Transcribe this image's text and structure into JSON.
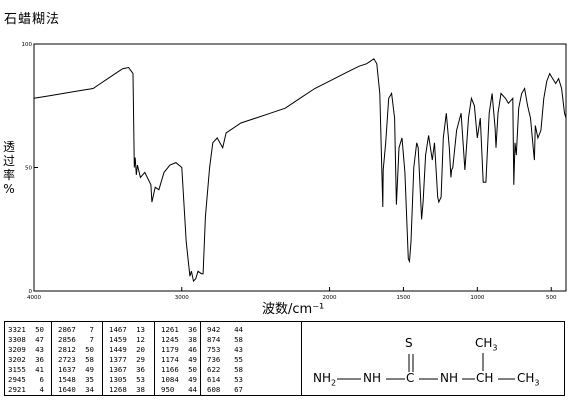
{
  "method_label": "石蜡糊法",
  "chart_data": {
    "type": "line",
    "title": "",
    "xlabel": "波数/cm⁻¹",
    "ylabel": [
      "透",
      "过",
      "率",
      "%"
    ],
    "xlim": [
      4000,
      400
    ],
    "ylim": [
      0,
      100
    ],
    "x_ticks": [
      {
        "value": 4000,
        "label": "4000"
      },
      {
        "value": 3000,
        "label": "3000"
      },
      {
        "value": 2000,
        "label": "2000"
      },
      {
        "value": 1500,
        "label": "1500"
      },
      {
        "value": 1000,
        "label": "1000"
      },
      {
        "value": 500,
        "label": "500"
      }
    ],
    "y_ticks": [
      {
        "value": 100,
        "label": "100"
      },
      {
        "value": 50,
        "label": "50"
      },
      {
        "value": 0,
        "label": "0"
      }
    ],
    "grid": false,
    "series": [
      {
        "color": "#000000",
        "points": [
          [
            4000,
            78
          ],
          [
            3900,
            79
          ],
          [
            3800,
            80
          ],
          [
            3700,
            81
          ],
          [
            3600,
            82
          ],
          [
            3550,
            84
          ],
          [
            3500,
            86
          ],
          [
            3450,
            88
          ],
          [
            3400,
            90
          ],
          [
            3360,
            90.5
          ],
          [
            3330,
            88
          ],
          [
            3321,
            50
          ],
          [
            3315,
            54
          ],
          [
            3308,
            47
          ],
          [
            3300,
            51
          ],
          [
            3280,
            46
          ],
          [
            3250,
            48
          ],
          [
            3209,
            43
          ],
          [
            3202,
            36
          ],
          [
            3180,
            42
          ],
          [
            3155,
            41
          ],
          [
            3120,
            48
          ],
          [
            3080,
            51
          ],
          [
            3040,
            52
          ],
          [
            3000,
            50
          ],
          [
            2970,
            20
          ],
          [
            2945,
            6
          ],
          [
            2935,
            8
          ],
          [
            2921,
            4
          ],
          [
            2905,
            5
          ],
          [
            2890,
            8
          ],
          [
            2867,
            7
          ],
          [
            2856,
            7
          ],
          [
            2840,
            30
          ],
          [
            2812,
            50
          ],
          [
            2790,
            60
          ],
          [
            2760,
            62
          ],
          [
            2723,
            58
          ],
          [
            2700,
            64
          ],
          [
            2600,
            68
          ],
          [
            2500,
            70
          ],
          [
            2400,
            72
          ],
          [
            2300,
            74
          ],
          [
            2200,
            78
          ],
          [
            2100,
            82
          ],
          [
            2000,
            85
          ],
          [
            1900,
            88
          ],
          [
            1800,
            91
          ],
          [
            1750,
            92
          ],
          [
            1700,
            94
          ],
          [
            1680,
            92
          ],
          [
            1660,
            80
          ],
          [
            1640,
            34
          ],
          [
            1637,
            49
          ],
          [
            1620,
            60
          ],
          [
            1600,
            78
          ],
          [
            1580,
            80
          ],
          [
            1560,
            70
          ],
          [
            1548,
            35
          ],
          [
            1530,
            58
          ],
          [
            1510,
            62
          ],
          [
            1490,
            48
          ],
          [
            1467,
            13
          ],
          [
            1459,
            12
          ],
          [
            1449,
            20
          ],
          [
            1430,
            50
          ],
          [
            1410,
            60
          ],
          [
            1400,
            58
          ],
          [
            1377,
            29
          ],
          [
            1367,
            36
          ],
          [
            1350,
            55
          ],
          [
            1330,
            63
          ],
          [
            1305,
            53
          ],
          [
            1290,
            60
          ],
          [
            1268,
            38
          ],
          [
            1261,
            36
          ],
          [
            1245,
            38
          ],
          [
            1230,
            62
          ],
          [
            1210,
            72
          ],
          [
            1190,
            58
          ],
          [
            1179,
            46
          ],
          [
            1174,
            49
          ],
          [
            1166,
            50
          ],
          [
            1140,
            65
          ],
          [
            1110,
            72
          ],
          [
            1084,
            49
          ],
          [
            1060,
            70
          ],
          [
            1040,
            78
          ],
          [
            1020,
            75
          ],
          [
            1000,
            62
          ],
          [
            980,
            70
          ],
          [
            960,
            44
          ],
          [
            950,
            44
          ],
          [
            942,
            44
          ],
          [
            920,
            72
          ],
          [
            900,
            80
          ],
          [
            880,
            66
          ],
          [
            874,
            58
          ],
          [
            860,
            72
          ],
          [
            840,
            80
          ],
          [
            810,
            78
          ],
          [
            790,
            76
          ],
          [
            760,
            78
          ],
          [
            753,
            43
          ],
          [
            745,
            60
          ],
          [
            736,
            55
          ],
          [
            720,
            74
          ],
          [
            700,
            80
          ],
          [
            680,
            82
          ],
          [
            660,
            75
          ],
          [
            640,
            70
          ],
          [
            622,
            58
          ],
          [
            614,
            53
          ],
          [
            608,
            67
          ],
          [
            590,
            62
          ],
          [
            570,
            65
          ],
          [
            550,
            78
          ],
          [
            530,
            85
          ],
          [
            510,
            88
          ],
          [
            490,
            86
          ],
          [
            470,
            84
          ],
          [
            450,
            86
          ],
          [
            430,
            82
          ],
          [
            410,
            72
          ],
          [
            400,
            70
          ]
        ]
      }
    ]
  },
  "peak_table": {
    "columns": [
      [
        [
          "3321",
          "50"
        ],
        [
          "3308",
          "47"
        ],
        [
          "3209",
          "43"
        ],
        [
          "3202",
          "36"
        ],
        [
          "3155",
          "41"
        ],
        [
          "2945",
          "6"
        ],
        [
          "2921",
          "4"
        ]
      ],
      [
        [
          "2867",
          "7"
        ],
        [
          "2856",
          "7"
        ],
        [
          "2812",
          "50"
        ],
        [
          "2723",
          "58"
        ],
        [
          "1637",
          "49"
        ],
        [
          "1548",
          "35"
        ],
        [
          "1640",
          "34"
        ]
      ],
      [
        [
          "1467",
          "13"
        ],
        [
          "1459",
          "12"
        ],
        [
          "1449",
          "20"
        ],
        [
          "1377",
          "29"
        ],
        [
          "1367",
          "36"
        ],
        [
          "1305",
          "53"
        ],
        [
          "1268",
          "38"
        ]
      ],
      [
        [
          "1261",
          "36"
        ],
        [
          "1245",
          "38"
        ],
        [
          "1179",
          "46"
        ],
        [
          "1174",
          "49"
        ],
        [
          "1166",
          "50"
        ],
        [
          "1084",
          "49"
        ],
        [
          "950",
          "44"
        ]
      ],
      [
        [
          "942",
          "44"
        ],
        [
          "874",
          "58"
        ],
        [
          "753",
          "43"
        ],
        [
          "736",
          "55"
        ],
        [
          "622",
          "58"
        ],
        [
          "614",
          "53"
        ],
        [
          "608",
          "67"
        ]
      ]
    ]
  },
  "structure": {
    "s_atom": "S",
    "ch3_top": "CH",
    "ch3_top_sub": "3",
    "nh2": "NH",
    "nh2_sub": "2",
    "nh_1": "NH",
    "c_center": "C",
    "nh_2": "NH",
    "ch": "CH",
    "ch3_right": "CH",
    "ch3_right_sub": "3"
  }
}
